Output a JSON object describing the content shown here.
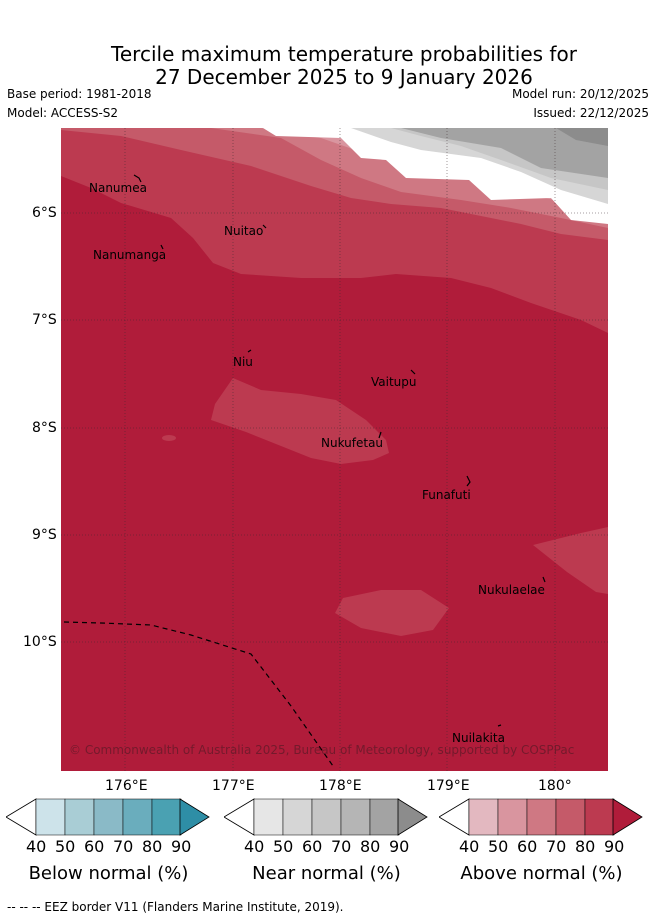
{
  "title": {
    "line1": "Tercile maximum temperature probabilities for",
    "line2": "27 December 2025 to 9 January 2026"
  },
  "meta": {
    "base_period": "Base period: 1981-2018",
    "model": "Model: ACCESS-S2",
    "model_run": "Model run: 20/12/2025",
    "issued": "Issued: 22/12/2025"
  },
  "map": {
    "lat_labels": [
      "6°S",
      "7°S",
      "8°S",
      "9°S",
      "10°S"
    ],
    "lon_labels": [
      "176°E",
      "177°E",
      "178°E",
      "179°E",
      "180°"
    ],
    "places": [
      "Nanumea",
      "Nanumanga",
      "Nuitao",
      "Niu",
      "Vaitupu",
      "Nukufetau",
      "Funafuti",
      "Nukulaelae",
      "Nuilakita"
    ],
    "copyright": "© Commonwealth of Australia 2025, Bureau of Meteorology, supported by COSPPac"
  },
  "legend": {
    "ticks": [
      "40",
      "50",
      "60",
      "70",
      "80",
      "90"
    ],
    "below_label": "Below normal (%)",
    "near_label": "Near normal (%)",
    "above_label": "Above normal (%)",
    "below_colors": [
      "#cde3ea",
      "#a9cdd5",
      "#8abac7",
      "#6aadbd",
      "#4aa1b2",
      "#2e8ea6"
    ],
    "near_colors": [
      "#e6e6e6",
      "#d6d6d6",
      "#c6c6c6",
      "#b5b5b5",
      "#a3a3a3",
      "#8c8c8c"
    ],
    "above_colors": [
      "#e3b8c0",
      "#d9959f",
      "#cf7883",
      "#c55a69",
      "#bc3a50",
      "#b01c3a"
    ]
  },
  "footnote": "--  --  -- EEZ border V11 (Flanders Marine Institute, 2019)."
}
